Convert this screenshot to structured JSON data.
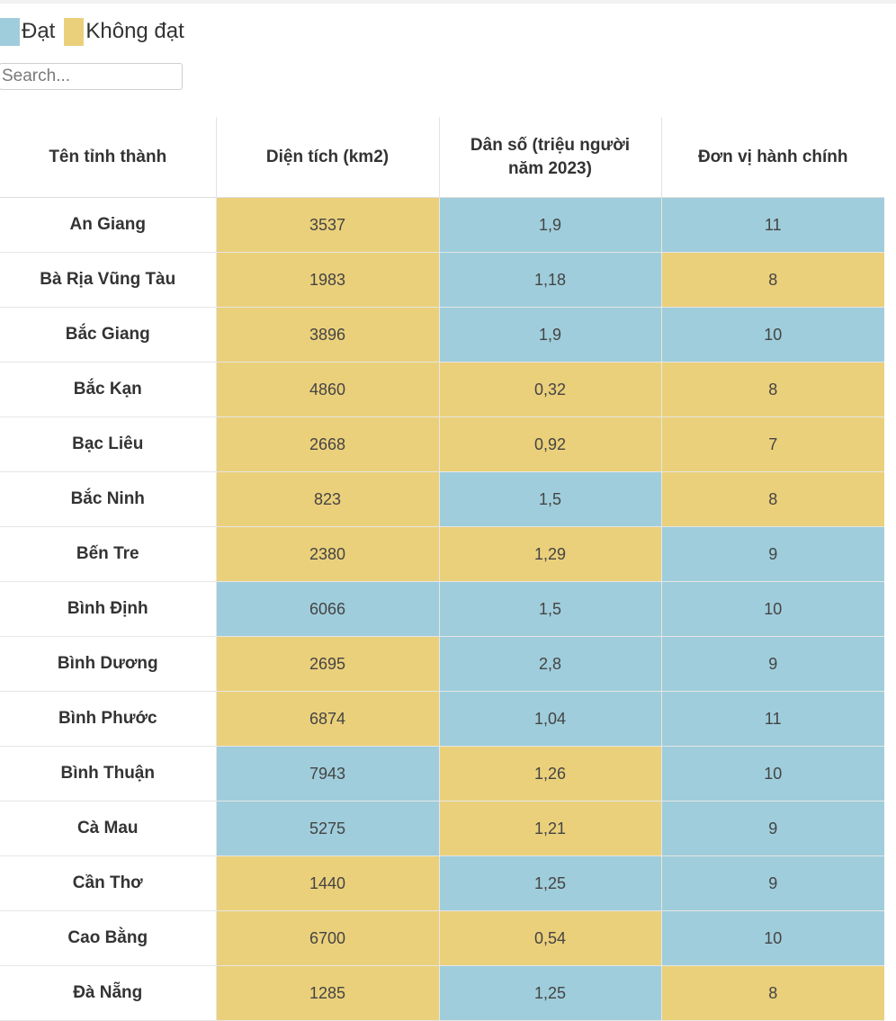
{
  "legend": [
    {
      "label": "Đạt",
      "color": "#9fcddb"
    },
    {
      "label": "Không đạt",
      "color": "#ebd07b"
    }
  ],
  "search": {
    "placeholder": "Search..."
  },
  "table": {
    "headers": [
      "Tên tỉnh thành",
      "Diện tích (km2)",
      "Dân số (triệu người năm 2023)",
      "Đơn vị hành chính"
    ],
    "rows": [
      {
        "name": "An Giang",
        "cells": [
          {
            "v": "3537",
            "s": "fail"
          },
          {
            "v": "1,9",
            "s": "pass"
          },
          {
            "v": "11",
            "s": "pass"
          }
        ]
      },
      {
        "name": "Bà Rịa Vũng Tàu",
        "cells": [
          {
            "v": "1983",
            "s": "fail"
          },
          {
            "v": "1,18",
            "s": "pass"
          },
          {
            "v": "8",
            "s": "fail"
          }
        ]
      },
      {
        "name": "Bắc Giang",
        "cells": [
          {
            "v": "3896",
            "s": "fail"
          },
          {
            "v": "1,9",
            "s": "pass"
          },
          {
            "v": "10",
            "s": "pass"
          }
        ]
      },
      {
        "name": "Bắc Kạn",
        "cells": [
          {
            "v": "4860",
            "s": "fail"
          },
          {
            "v": "0,32",
            "s": "fail"
          },
          {
            "v": "8",
            "s": "fail"
          }
        ]
      },
      {
        "name": "Bạc Liêu",
        "cells": [
          {
            "v": "2668",
            "s": "fail"
          },
          {
            "v": "0,92",
            "s": "fail"
          },
          {
            "v": "7",
            "s": "fail"
          }
        ]
      },
      {
        "name": "Bắc Ninh",
        "cells": [
          {
            "v": "823",
            "s": "fail"
          },
          {
            "v": "1,5",
            "s": "pass"
          },
          {
            "v": "8",
            "s": "fail"
          }
        ]
      },
      {
        "name": "Bến Tre",
        "cells": [
          {
            "v": "2380",
            "s": "fail"
          },
          {
            "v": "1,29",
            "s": "fail"
          },
          {
            "v": "9",
            "s": "pass"
          }
        ]
      },
      {
        "name": "Bình Định",
        "cells": [
          {
            "v": "6066",
            "s": "pass"
          },
          {
            "v": "1,5",
            "s": "pass"
          },
          {
            "v": "10",
            "s": "pass"
          }
        ]
      },
      {
        "name": "Bình Dương",
        "cells": [
          {
            "v": "2695",
            "s": "fail"
          },
          {
            "v": "2,8",
            "s": "pass"
          },
          {
            "v": "9",
            "s": "pass"
          }
        ]
      },
      {
        "name": "Bình Phước",
        "cells": [
          {
            "v": "6874",
            "s": "fail"
          },
          {
            "v": "1,04",
            "s": "pass"
          },
          {
            "v": "11",
            "s": "pass"
          }
        ]
      },
      {
        "name": "Bình Thuận",
        "cells": [
          {
            "v": "7943",
            "s": "pass"
          },
          {
            "v": "1,26",
            "s": "fail"
          },
          {
            "v": "10",
            "s": "pass"
          }
        ]
      },
      {
        "name": "Cà Mau",
        "cells": [
          {
            "v": "5275",
            "s": "pass"
          },
          {
            "v": "1,21",
            "s": "fail"
          },
          {
            "v": "9",
            "s": "pass"
          }
        ]
      },
      {
        "name": "Cần Thơ",
        "cells": [
          {
            "v": "1440",
            "s": "fail"
          },
          {
            "v": "1,25",
            "s": "pass"
          },
          {
            "v": "9",
            "s": "pass"
          }
        ]
      },
      {
        "name": "Cao Bằng",
        "cells": [
          {
            "v": "6700",
            "s": "fail"
          },
          {
            "v": "0,54",
            "s": "fail"
          },
          {
            "v": "10",
            "s": "pass"
          }
        ]
      },
      {
        "name": "Đà Nẵng",
        "cells": [
          {
            "v": "1285",
            "s": "fail"
          },
          {
            "v": "1,25",
            "s": "pass"
          },
          {
            "v": "8",
            "s": "fail"
          }
        ]
      }
    ]
  }
}
